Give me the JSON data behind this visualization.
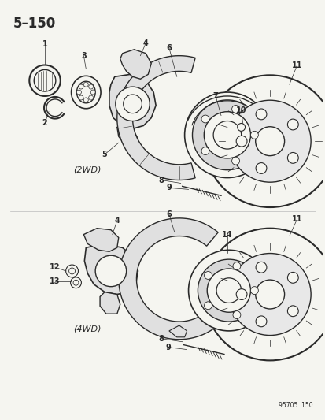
{
  "title": "5–150",
  "background_color": "#f5f5f0",
  "line_color": "#2a2a2a",
  "label_2wd": "(2WD)",
  "label_4wd": "(4WD)",
  "footer": "95705  150",
  "fig_width": 4.14,
  "fig_height": 5.33,
  "dpi": 100
}
